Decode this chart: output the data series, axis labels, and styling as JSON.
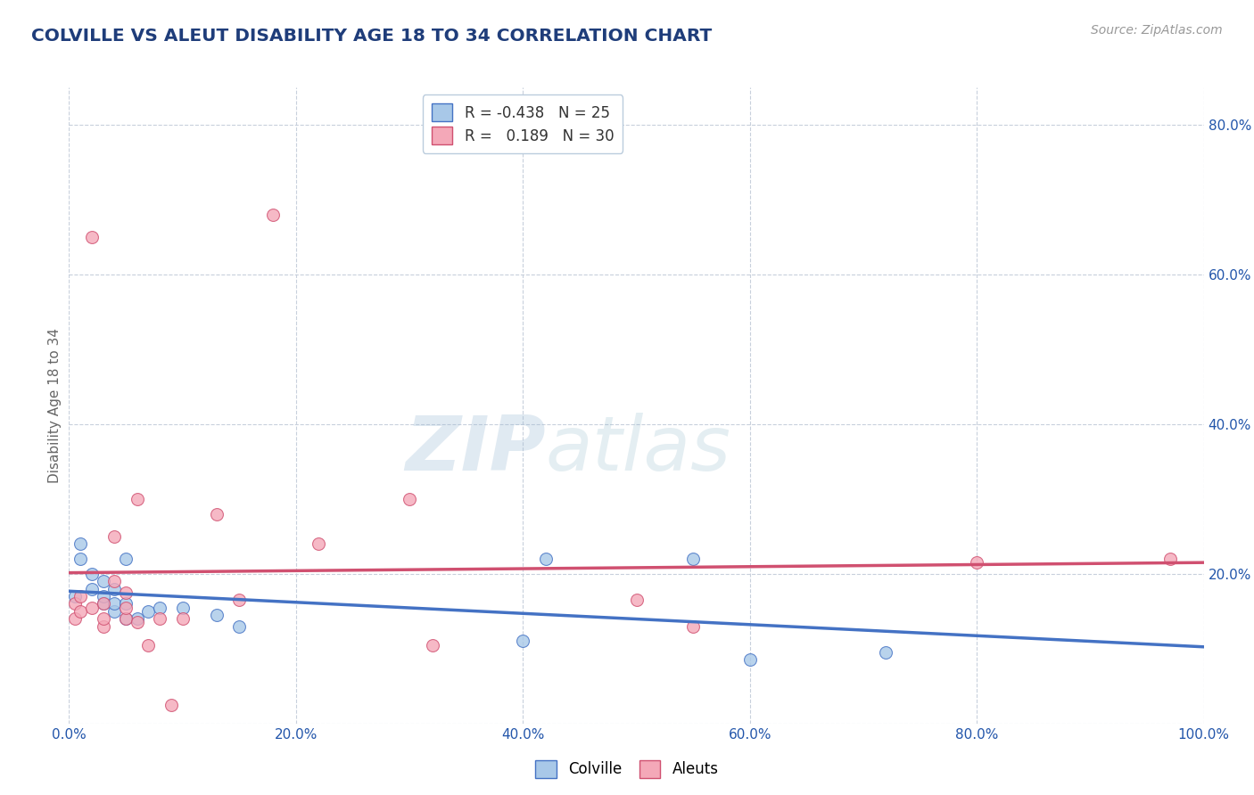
{
  "title": "COLVILLE VS ALEUT DISABILITY AGE 18 TO 34 CORRELATION CHART",
  "title_color": "#1F3D7A",
  "source_text": "Source: ZipAtlas.com",
  "ylabel": "Disability Age 18 to 34",
  "xlim": [
    0.0,
    1.0
  ],
  "ylim": [
    0.0,
    0.85
  ],
  "x_ticks": [
    0.0,
    0.2,
    0.4,
    0.6,
    0.8,
    1.0
  ],
  "y_ticks": [
    0.0,
    0.2,
    0.4,
    0.6,
    0.8
  ],
  "x_tick_labels": [
    "0.0%",
    "20.0%",
    "40.0%",
    "60.0%",
    "80.0%",
    "100.0%"
  ],
  "y_tick_labels_right": [
    "",
    "20.0%",
    "40.0%",
    "60.0%",
    "80.0%"
  ],
  "colville_R": -0.438,
  "colville_N": 25,
  "aleuts_R": 0.189,
  "aleuts_N": 30,
  "colville_color": "#A8C8E8",
  "aleuts_color": "#F4A8B8",
  "colville_line_color": "#4472C4",
  "aleuts_line_color": "#D05070",
  "background_color": "#FFFFFF",
  "grid_color": "#C8D0DC",
  "colville_scatter_x": [
    0.005,
    0.01,
    0.01,
    0.02,
    0.02,
    0.03,
    0.03,
    0.03,
    0.04,
    0.04,
    0.04,
    0.05,
    0.05,
    0.05,
    0.06,
    0.07,
    0.08,
    0.1,
    0.13,
    0.15,
    0.4,
    0.42,
    0.55,
    0.6,
    0.72
  ],
  "colville_scatter_y": [
    0.17,
    0.22,
    0.24,
    0.18,
    0.2,
    0.16,
    0.17,
    0.19,
    0.15,
    0.16,
    0.18,
    0.14,
    0.16,
    0.22,
    0.14,
    0.15,
    0.155,
    0.155,
    0.145,
    0.13,
    0.11,
    0.22,
    0.22,
    0.085,
    0.095
  ],
  "aleuts_scatter_x": [
    0.005,
    0.005,
    0.01,
    0.01,
    0.02,
    0.02,
    0.03,
    0.03,
    0.03,
    0.04,
    0.04,
    0.05,
    0.05,
    0.05,
    0.06,
    0.06,
    0.07,
    0.08,
    0.09,
    0.1,
    0.13,
    0.15,
    0.18,
    0.22,
    0.3,
    0.32,
    0.5,
    0.55,
    0.8,
    0.97
  ],
  "aleuts_scatter_y": [
    0.14,
    0.16,
    0.15,
    0.17,
    0.155,
    0.65,
    0.13,
    0.14,
    0.16,
    0.19,
    0.25,
    0.14,
    0.155,
    0.175,
    0.135,
    0.3,
    0.105,
    0.14,
    0.025,
    0.14,
    0.28,
    0.165,
    0.68,
    0.24,
    0.3,
    0.105,
    0.165,
    0.13,
    0.215,
    0.22
  ],
  "watermark_zip": "ZIP",
  "watermark_atlas": "atlas",
  "legend_colville_label": "Colville",
  "legend_aleuts_label": "Aleuts"
}
